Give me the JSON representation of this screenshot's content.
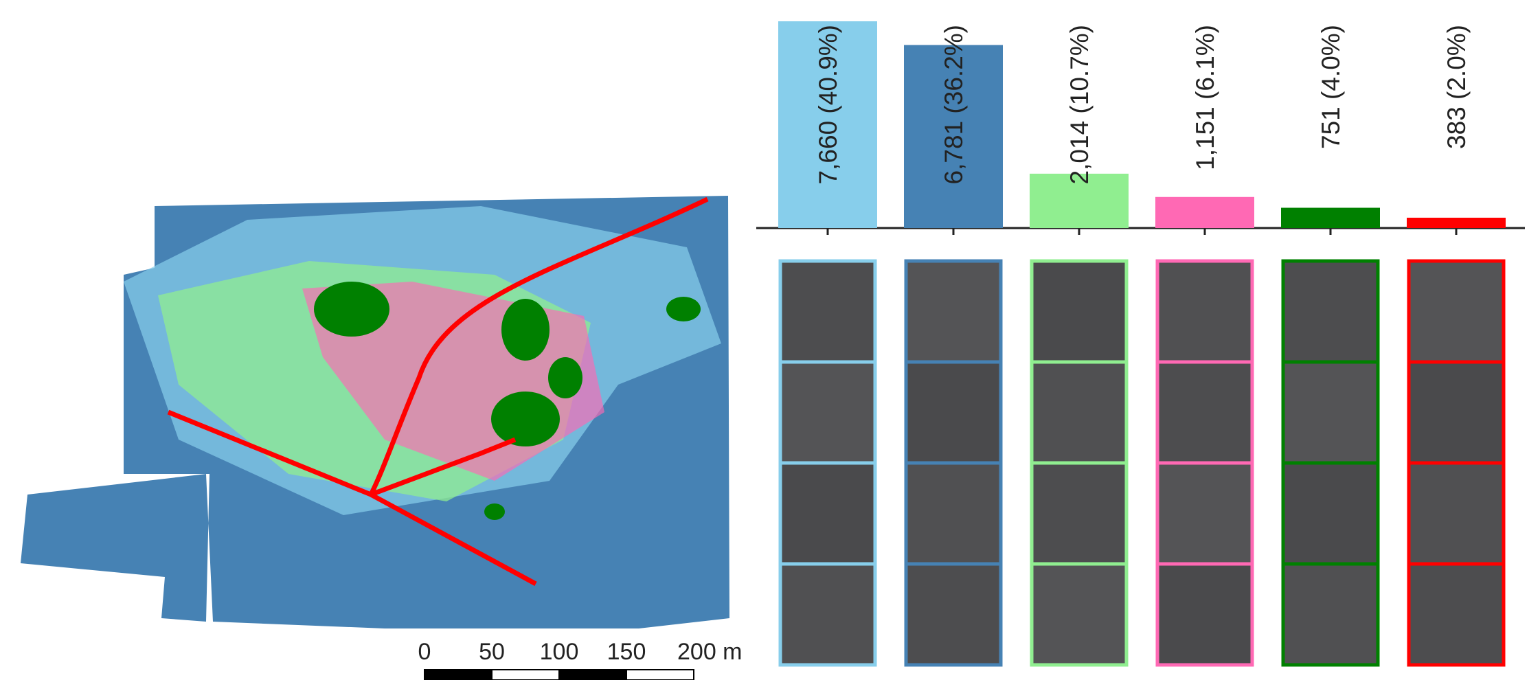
{
  "chart_data": [
    {
      "type": "bar",
      "values": [
        7660,
        6781,
        2014,
        1151,
        751,
        383
      ],
      "value_labels": [
        "7,660 (40.9%)",
        "6,781 (36.2%)",
        "2,014 (10.7%)",
        "1,151 (6.1%)",
        "751 (4.0%)",
        "383 (2.0%)"
      ],
      "colors": [
        "#87ceeb",
        "#4682b4",
        "#90ee90",
        "#ff69b4",
        "#008000",
        "#ff0000"
      ],
      "ylim": [
        0,
        7660
      ]
    },
    {
      "type": "scalebar",
      "xlim": [
        0,
        200
      ],
      "xticks": [
        0,
        50,
        100,
        150,
        {
          "value": 200,
          "label": "200 m"
        }
      ]
    }
  ]
}
